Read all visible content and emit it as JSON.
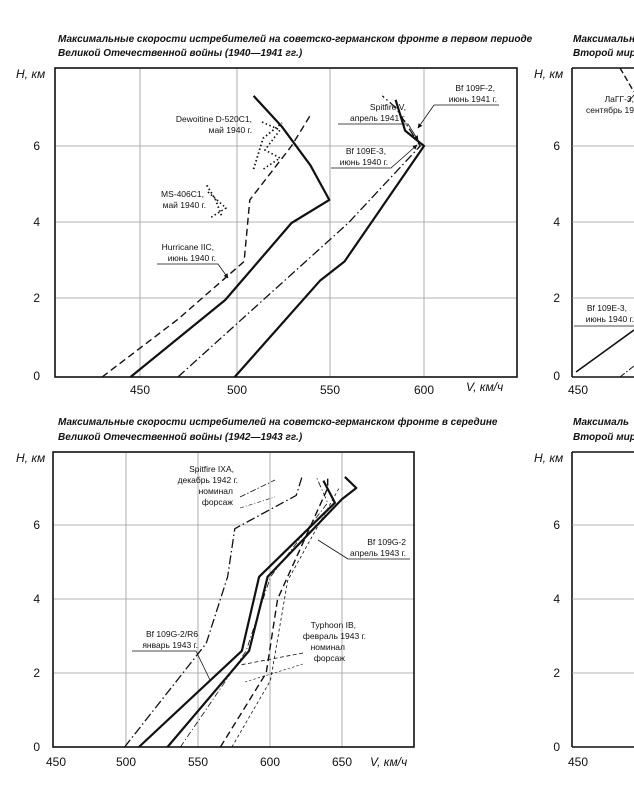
{
  "chart_data": [
    {
      "type": "line",
      "title_lines": [
        "Максимальные скорости истребителей на советско-германском фронте в первом периоде",
        "Великой Отечественной войны (1940—1941 гг.)"
      ],
      "ylabel": "H, км",
      "xlabel": "V, км/ч",
      "xlim": [
        450,
        650
      ],
      "ylim": [
        0,
        8
      ],
      "xticks": [
        "450",
        "500",
        "550",
        "600"
      ],
      "yticks": [
        "0",
        "2",
        "4",
        "6"
      ],
      "grid": true,
      "series": [
        {
          "label_lines": [
            "Bf 109F-2,",
            "июнь 1941 г."
          ],
          "style": "solid-heavy",
          "points": [
            [
              500,
              0
            ],
            [
              545,
              2.5
            ],
            [
              558,
              3
            ],
            [
              600,
              6
            ],
            [
              590,
              6.4
            ],
            [
              585,
              7.2
            ]
          ]
        },
        {
          "label_lines": [
            "Spitfire V,",
            "апрель 1941 г."
          ],
          "style": "dashdot",
          "points": [
            [
              470,
              0
            ],
            [
              515,
              2
            ],
            [
              560,
              4
            ],
            [
              598,
              6
            ],
            [
              585,
              7
            ],
            [
              578,
              7.3
            ]
          ]
        },
        {
          "label_lines": [
            "Bf 109E-3,",
            "июнь 1940 г."
          ],
          "style": "solid-heavy",
          "points": [
            [
              445,
              0
            ],
            [
              495,
              2
            ],
            [
              530,
              4
            ],
            [
              550,
              4.6
            ],
            [
              540,
              5.5
            ],
            [
              525,
              6.5
            ],
            [
              510,
              7.3
            ]
          ]
        },
        {
          "label_lines": [
            "Hurricane IIC,",
            "июнь 1940 г."
          ],
          "style": "dashed",
          "points": [
            [
              430,
              0
            ],
            [
              470,
              1.5
            ],
            [
              505,
              3
            ],
            [
              508,
              4.6
            ],
            [
              530,
              6
            ],
            [
              540,
              6.8
            ]
          ]
        },
        {
          "label_lines": [
            "MS-406C1,",
            "май 1940 г."
          ],
          "style": "dotted",
          "points": [
            [
              493,
              4.2
            ],
            [
              490,
              4.6
            ],
            [
              485,
              5.0
            ]
          ]
        },
        {
          "label_lines": [
            "Dewoitine D-520C1,",
            "май 1940 г."
          ],
          "style": "dotted",
          "points": [
            [
              510,
              5.4
            ],
            [
              515,
              6.2
            ],
            [
              525,
              6.6
            ]
          ]
        }
      ]
    },
    {
      "type": "line",
      "title_lines": [
        "Максимальные скорости истребителей на советско-германском фронте в середине",
        "Великой Отечественной войны (1942—1943 гг.)"
      ],
      "ylabel": "H, км",
      "xlabel": "V, км/ч",
      "xlim": [
        450,
        660
      ],
      "ylim": [
        0,
        8
      ],
      "xticks": [
        "450",
        "500",
        "550",
        "600",
        "650"
      ],
      "yticks": [
        "0",
        "2",
        "4",
        "6"
      ],
      "grid": true,
      "annotations": [
        {
          "lines": [
            "Spitfire IXA,",
            "декабрь 1942 г.",
            "номинал",
            "форсаж"
          ]
        },
        {
          "lines": [
            "Bf 109G-2",
            "апрель 1943 г."
          ]
        },
        {
          "lines": [
            "Bf 109G-2/R6",
            "январь 1943 г."
          ]
        },
        {
          "lines": [
            "Typhoon IB,",
            "февраль 1943 г.",
            "номинал",
            "форсаж"
          ]
        }
      ],
      "series": [
        {
          "name": "Bf 109G-2 апрель 1943 г.",
          "style": "solid-heavy",
          "points": [
            [
              528,
              0
            ],
            [
              585,
              2.6
            ],
            [
              598,
              4.6
            ],
            [
              650,
              6.7
            ],
            [
              660,
              7.0
            ],
            [
              652,
              7.3
            ]
          ]
        },
        {
          "name": "Bf 109G-2/R6 январь 1943 г.",
          "style": "solid-heavy",
          "points": [
            [
              508,
              0
            ],
            [
              580,
              2.6
            ],
            [
              592,
              4.6
            ],
            [
              645,
              6.6
            ],
            [
              637,
              7.2
            ]
          ]
        },
        {
          "name": "Spitfire IXA номинал",
          "style": "dashdot",
          "points": [
            [
              498,
              0
            ],
            [
              555,
              2.8
            ],
            [
              570,
              4.6
            ],
            [
              575,
              5.9
            ],
            [
              618,
              6.8
            ],
            [
              622,
              7.3
            ]
          ]
        },
        {
          "name": "Spitfire IXA форсаж",
          "style": "dashdot-thin",
          "points": [
            [
              537,
              0
            ],
            [
              583,
              2.6
            ],
            [
              600,
              4.6
            ],
            [
              640,
              6.6
            ],
            [
              632,
              7.3
            ]
          ]
        },
        {
          "name": "Typhoon IB номинал",
          "style": "dashed",
          "points": [
            [
              565,
              0
            ],
            [
              597,
              2
            ],
            [
              605,
              4
            ],
            [
              640,
              7.0
            ],
            [
              640,
              7.3
            ]
          ]
        },
        {
          "name": "Typhoon IB форсаж",
          "style": "dashed-thin",
          "points": [
            [
              573,
              0
            ],
            [
              600,
              1.8
            ],
            [
              612,
              4.5
            ],
            [
              648,
              7.0
            ]
          ]
        }
      ]
    }
  ],
  "right_partial": {
    "top_title_lines": [
      "Максимальн",
      "Второй миро"
    ],
    "bottom_title_lines": [
      "Максималь",
      "Второй миро"
    ],
    "top_labels": [
      "ЛаГГ-3,",
      "сентябрь 19",
      "Bf 109E-3,",
      "июнь 1940 г."
    ],
    "top_yticks": [
      "0",
      "2",
      "4",
      "6"
    ],
    "top_ylabel": "H, км",
    "top_x0": "450",
    "bottom_yticks": [
      "0",
      "2",
      "4",
      "6"
    ],
    "bottom_ylabel": "H, км",
    "bottom_x0": "450"
  }
}
